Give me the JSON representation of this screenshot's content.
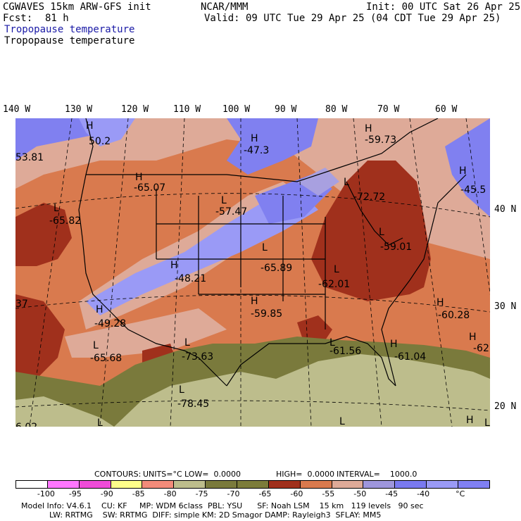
{
  "header": {
    "model": "CGWAVES 15km ARW-GFS init",
    "center": "NCAR/MMM",
    "init": "Init: 00 UTC Sat 26 Apr 25",
    "fcst_label": "Fcst:",
    "fcst_value": "81 h",
    "valid": "Valid: 09 UTC Tue 29 Apr 25 (04 CDT Tue 29 Apr 25)",
    "field_blue": "Tropopause temperature",
    "field_black": "Tropopause temperature"
  },
  "longitude_labels": [
    "140 W",
    "130 W",
    "120 W",
    "110 W",
    "100 W",
    "90 W",
    "80 W",
    "70 W",
    "60 W"
  ],
  "latitude_labels": [
    "40 N",
    "30 N",
    "20 N"
  ],
  "map_labels": [
    {
      "text": "H"
    },
    {
      "text": "50.2"
    },
    {
      "text": "53.81"
    },
    {
      "text": "H"
    },
    {
      "text": "-47.3"
    },
    {
      "text": "H"
    },
    {
      "text": "-59.73"
    },
    {
      "text": "H"
    },
    {
      "text": "-65.07"
    },
    {
      "text": "L"
    },
    {
      "text": "-57.47"
    },
    {
      "text": "L"
    },
    {
      "text": "-72.72"
    },
    {
      "text": "H"
    },
    {
      "text": "-45.5"
    },
    {
      "text": "L"
    },
    {
      "text": "-65.82"
    },
    {
      "text": "L"
    },
    {
      "text": "-59.01"
    },
    {
      "text": "L"
    },
    {
      "text": "-65.89"
    },
    {
      "text": "H"
    },
    {
      "text": "-48.21"
    },
    {
      "text": "L"
    },
    {
      "text": "-62.01"
    },
    {
      "text": "37"
    },
    {
      "text": "H"
    },
    {
      "text": "-59.85"
    },
    {
      "text": "H"
    },
    {
      "text": "-60.28"
    },
    {
      "text": "H"
    },
    {
      "text": "-49.28"
    },
    {
      "text": "L"
    },
    {
      "text": "-65.68"
    },
    {
      "text": "L"
    },
    {
      "text": "-73.63"
    },
    {
      "text": "L"
    },
    {
      "text": "-61.56"
    },
    {
      "text": "H"
    },
    {
      "text": "-61.04"
    },
    {
      "text": "H"
    },
    {
      "text": "-62"
    },
    {
      "text": "L"
    },
    {
      "text": "-78.45"
    },
    {
      "text": "L"
    },
    {
      "text": "L"
    },
    {
      "text": "H"
    },
    {
      "text": "L"
    },
    {
      "text": "6.02"
    }
  ],
  "contours_line": {
    "contours": "CONTOURS:",
    "units": "UNITS=°C",
    "low": "LOW=  0.0000",
    "high": "HIGH=  0.0000",
    "interval": "INTERVAL=    1000.0"
  },
  "colorbar": {
    "colors": [
      "#ffffff",
      "#ff77ff",
      "#ef4cd8",
      "#fdfd8a",
      "#f28b7a",
      "#bdbd8c",
      "#7a7a3c",
      "#7c7c3a",
      "#a0301c",
      "#d97a4e",
      "#deaa98",
      "#9e96dc",
      "#7a7af0",
      "#9a9af6",
      "#8080f4"
    ],
    "ticks": [
      "-100",
      "-95",
      "-90",
      "-85",
      "-80",
      "-75",
      "-70",
      "-65",
      "-60",
      "-55",
      "-50",
      "-45",
      "-40",
      "°C"
    ]
  },
  "footer": {
    "line1": "Model Info: V4.6.1    CU: KF     MP: WDM 6class  PBL: YSU      SF: Noah LSM    15 km   119 levels   90 sec",
    "line2": "LW: RRTMG    SW: RRTMG  DIFF: simple KM: 2D Smagor DAMP: Rayleigh3  SFLAY: MM5"
  },
  "colors": {
    "blue_region": "#8080f0",
    "light_purple": "#a8a0e0",
    "pink": "#deaa98",
    "orange": "#d97a4e",
    "dark_red": "#a0301c",
    "olive": "#7a7a3c",
    "khaki": "#bdbd8c"
  }
}
